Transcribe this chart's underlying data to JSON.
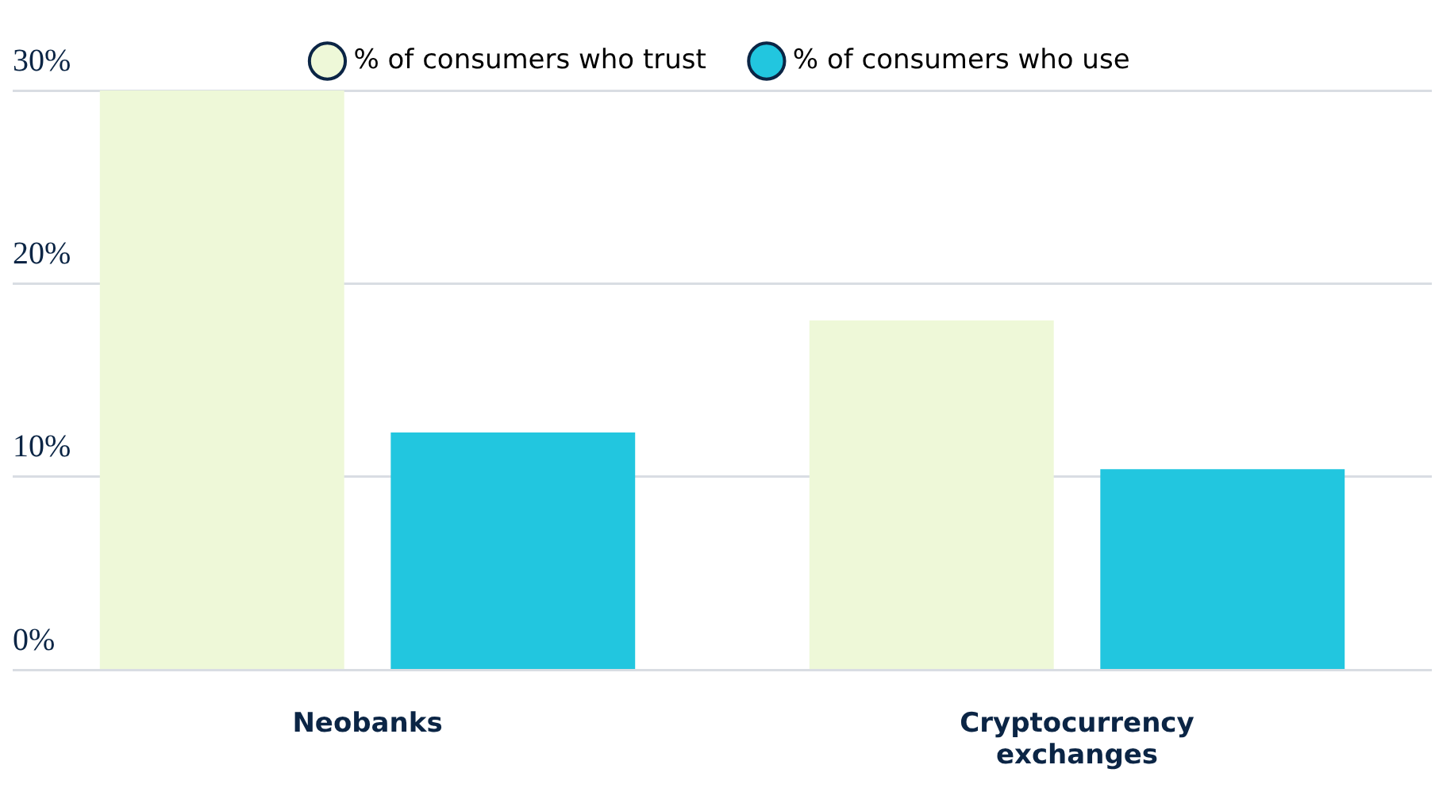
{
  "chart_data": {
    "type": "bar",
    "categories": [
      "Neobanks",
      "Cryptocurrency exchanges"
    ],
    "series": [
      {
        "name": "% of consumers who trust",
        "color": "#eef8d8",
        "values": [
          30,
          18.1
        ]
      },
      {
        "name": "% of consumers who use",
        "color": "#22c6df",
        "values": [
          12.3,
          10.4
        ]
      }
    ],
    "ylim": [
      0,
      30
    ],
    "yticks": [
      {
        "value": 0,
        "label": "0%"
      },
      {
        "value": 10,
        "label": "10%"
      },
      {
        "value": 20,
        "label": "20%"
      },
      {
        "value": 30,
        "label": "30%"
      }
    ],
    "grid": "y",
    "legend": "top"
  }
}
